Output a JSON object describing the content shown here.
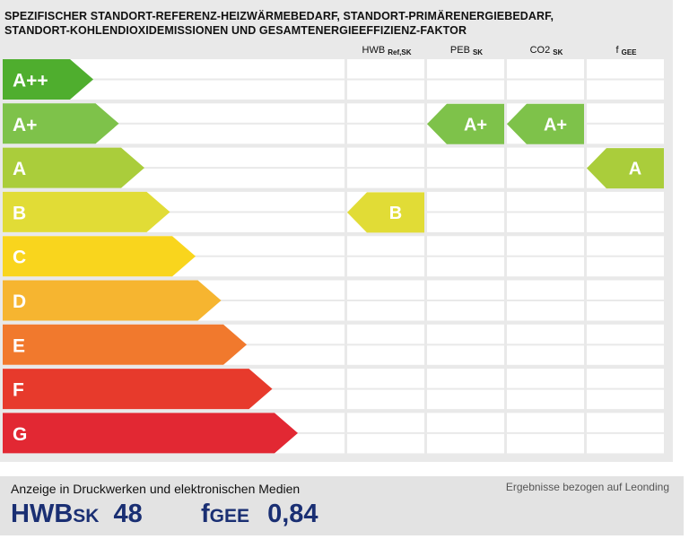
{
  "title_line1": "SPEZIFISCHER STANDORT-REFERENZ-HEIZWÄRMEBEDARF, STANDORT-PRIMÄRENERGIEBEDARF,",
  "title_line2": "STANDORT-KOHLENDIOXIDEMISSIONEN UND GESAMTENERGIEEFFIZIENZ-FAKTOR",
  "chart_data": {
    "type": "table",
    "classes": [
      {
        "label": "A++",
        "color": "#4fae2e"
      },
      {
        "label": "A+",
        "color": "#7ec24a"
      },
      {
        "label": "A",
        "color": "#aacd3b"
      },
      {
        "label": "B",
        "color": "#e1dc36"
      },
      {
        "label": "C",
        "color": "#f9d51d"
      },
      {
        "label": "D",
        "color": "#f6b530"
      },
      {
        "label": "E",
        "color": "#f1792d"
      },
      {
        "label": "F",
        "color": "#e73a2c"
      },
      {
        "label": "G",
        "color": "#e22833"
      }
    ],
    "columns": [
      {
        "name": "HWB",
        "sub": "Ref,SK",
        "rating": "B"
      },
      {
        "name": "PEB",
        "sub": "SK",
        "rating": "A+"
      },
      {
        "name": "CO2",
        "sub": "SK",
        "rating": "A+"
      },
      {
        "name": "f",
        "sub": "GEE",
        "rating": "A"
      }
    ]
  },
  "footer": {
    "caption": "Anzeige in Druckwerken und elektronischen Medien",
    "note": "Ergebnisse bezogen auf Leonding",
    "hwb_label": "HWB",
    "hwb_sub": "SK",
    "hwb_value": "48",
    "fgee_label": "f",
    "fgee_sub": "GEE",
    "fgee_value": "0,84"
  }
}
